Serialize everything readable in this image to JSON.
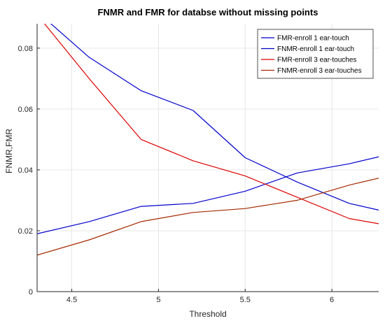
{
  "chart_data": {
    "type": "line",
    "title": "FNMR and FMR for databse without missing points",
    "xlabel": "Threshold",
    "ylabel": "FNMR,FMR",
    "xlim": [
      4.3,
      6.27
    ],
    "ylim": [
      0,
      0.088
    ],
    "xticks": [
      4.5,
      5,
      5.5,
      6
    ],
    "xtick_labels": [
      "4.5",
      "5",
      "5.5",
      "6"
    ],
    "yticks": [
      0,
      0.02,
      0.04,
      0.06,
      0.08
    ],
    "ytick_labels": [
      "0",
      "0.02",
      "0.04",
      "0.06",
      "0.08"
    ],
    "grid": true,
    "legend_position": "top-right",
    "series": [
      {
        "name": "FMR-enroll 1 ear-touch",
        "color": "#0000cc",
        "x": [
          4.3,
          4.6,
          4.9,
          5.2,
          5.5,
          5.8,
          6.1,
          6.27
        ],
        "y": [
          0.019,
          0.023,
          0.028,
          0.029,
          0.033,
          0.039,
          0.042,
          0.0443
        ]
      },
      {
        "name": "FNMR-enroll 1 ear-touch",
        "color": "#0000cc",
        "x": [
          4.3,
          4.6,
          4.9,
          5.2,
          5.5,
          5.8,
          6.1,
          6.27
        ],
        "y": [
          0.092,
          0.077,
          0.066,
          0.0595,
          0.044,
          0.036,
          0.029,
          0.0268
        ]
      },
      {
        "name": "FMR-enroll 3 ear-touches",
        "color": "#dd0000",
        "x": [
          4.3,
          4.6,
          4.9,
          5.2,
          5.5,
          5.8,
          6.1,
          6.27
        ],
        "y": [
          0.091,
          0.07,
          0.05,
          0.043,
          0.038,
          0.031,
          0.024,
          0.0223
        ]
      },
      {
        "name": "FNMR-enroll 3 ear-touches",
        "color": "#a52a00",
        "x": [
          4.3,
          4.6,
          4.9,
          5.2,
          5.5,
          5.8,
          6.1,
          6.27
        ],
        "y": [
          0.012,
          0.017,
          0.023,
          0.026,
          0.0273,
          0.03,
          0.035,
          0.0373
        ]
      }
    ]
  }
}
